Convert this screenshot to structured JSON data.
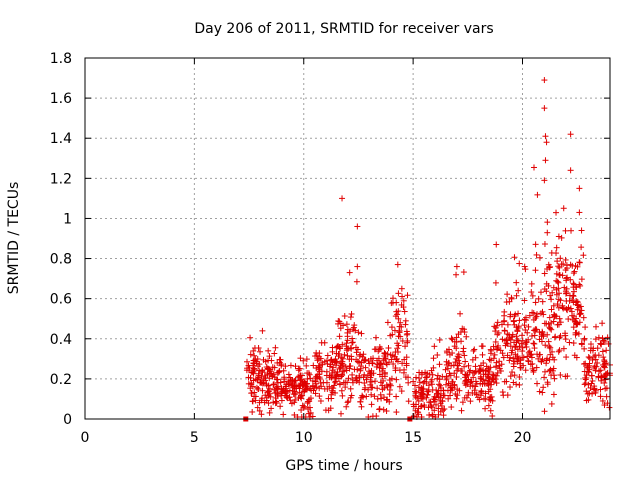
{
  "chart_data": {
    "type": "scatter",
    "title": "Day 206 of 2011, SRMTID for receiver vars",
    "xlabel": "GPS time / hours",
    "ylabel": "SRMTID / TECUs",
    "xlim": [
      0,
      24
    ],
    "ylim": [
      0,
      1.8
    ],
    "x_ticks": [
      0,
      5,
      10,
      15,
      20
    ],
    "x_tick_labels": [
      "0",
      "5",
      "10",
      "15",
      "20"
    ],
    "y_ticks": [
      0,
      0.2,
      0.4,
      0.6,
      0.8,
      1.0,
      1.2,
      1.4,
      1.6,
      1.8
    ],
    "y_tick_labels": [
      "0",
      "0.2",
      "0.4",
      "0.6",
      "0.8",
      "1",
      "1.2",
      "1.4",
      "1.6",
      "1.8"
    ],
    "grid": true,
    "marker": "plus",
    "color": "#e00000",
    "zero_markers_x": [
      7.35,
      14.85
    ],
    "series": [
      {
        "name": "SRMTID",
        "clusters": [
          {
            "x_start": 7.4,
            "x_end": 8.0,
            "center": 0.2,
            "spread": 0.12,
            "peak": 0.42,
            "n": 60
          },
          {
            "x_start": 8.0,
            "x_end": 8.8,
            "center": 0.18,
            "spread": 0.12,
            "peak": 0.47,
            "n": 80
          },
          {
            "x_start": 8.8,
            "x_end": 10.5,
            "center": 0.15,
            "spread": 0.1,
            "peak": 0.33,
            "n": 150
          },
          {
            "x_start": 10.5,
            "x_end": 11.5,
            "center": 0.22,
            "spread": 0.12,
            "peak": 0.38,
            "n": 90
          },
          {
            "x_start": 11.5,
            "x_end": 12.5,
            "center": 0.3,
            "spread": 0.18,
            "peak": 0.78,
            "n": 100
          },
          {
            "x_start": 12.5,
            "x_end": 14.0,
            "center": 0.2,
            "spread": 0.14,
            "peak": 0.5,
            "n": 120
          },
          {
            "x_start": 14.0,
            "x_end": 14.8,
            "center": 0.35,
            "spread": 0.2,
            "peak": 0.78,
            "n": 70
          },
          {
            "x_start": 15.0,
            "x_end": 16.5,
            "center": 0.12,
            "spread": 0.1,
            "peak": 0.4,
            "n": 120
          },
          {
            "x_start": 16.5,
            "x_end": 17.5,
            "center": 0.25,
            "spread": 0.15,
            "peak": 0.76,
            "n": 90
          },
          {
            "x_start": 17.5,
            "x_end": 18.7,
            "center": 0.18,
            "spread": 0.12,
            "peak": 0.42,
            "n": 100
          },
          {
            "x_start": 18.7,
            "x_end": 20.5,
            "center": 0.38,
            "spread": 0.18,
            "peak": 0.87,
            "n": 160
          },
          {
            "x_start": 20.5,
            "x_end": 21.5,
            "center": 0.45,
            "spread": 0.25,
            "peak": 1.42,
            "n": 110
          },
          {
            "x_start": 21.5,
            "x_end": 22.8,
            "center": 0.55,
            "spread": 0.25,
            "peak": 1.15,
            "n": 130
          },
          {
            "x_start": 22.8,
            "x_end": 24.0,
            "center": 0.25,
            "spread": 0.14,
            "peak": 0.48,
            "n": 110
          }
        ],
        "outliers": [
          {
            "x": 11.75,
            "y": 1.1
          },
          {
            "x": 12.45,
            "y": 0.96
          },
          {
            "x": 21.0,
            "y": 1.69
          },
          {
            "x": 21.0,
            "y": 1.55
          },
          {
            "x": 21.05,
            "y": 1.41
          },
          {
            "x": 21.1,
            "y": 1.38
          },
          {
            "x": 21.05,
            "y": 1.29
          },
          {
            "x": 21.0,
            "y": 1.19
          },
          {
            "x": 22.2,
            "y": 1.42
          },
          {
            "x": 22.2,
            "y": 1.24
          },
          {
            "x": 22.6,
            "y": 1.15
          },
          {
            "x": 22.6,
            "y": 1.03
          },
          {
            "x": 12.1,
            "y": 0.73
          },
          {
            "x": 12.45,
            "y": 0.76
          },
          {
            "x": 14.3,
            "y": 0.77
          },
          {
            "x": 17.0,
            "y": 0.76
          },
          {
            "x": 18.8,
            "y": 0.87
          },
          {
            "x": 20.1,
            "y": 0.76
          },
          {
            "x": 22.7,
            "y": 0.94
          }
        ]
      }
    ]
  }
}
